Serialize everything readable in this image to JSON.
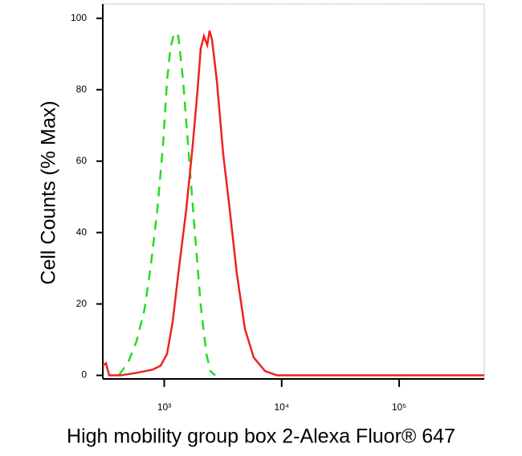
{
  "chart_data": {
    "type": "line",
    "x_label": "High mobility group box 2-Alexa Fluor® 647",
    "y_label": "Cell Counts (% Max)",
    "xscale": "log",
    "xlim": [
      300,
      530000
    ],
    "ylim": [
      -1,
      104
    ],
    "xticks": [
      {
        "value": 1000,
        "label": "10³"
      },
      {
        "value": 10000,
        "label": "10⁴"
      },
      {
        "value": 100000,
        "label": "10⁵"
      }
    ],
    "yticks": [
      0,
      20,
      40,
      60,
      80,
      100
    ],
    "series": [
      {
        "color": "#22dd22",
        "dashed": true,
        "x": [
          411,
          497,
          581,
          679,
          771,
          875,
          977,
          1057,
          1127,
          1217,
          1318,
          1449,
          1616,
          1804,
          2045,
          2285,
          2472,
          2716
        ],
        "values": [
          0,
          3.9,
          9.5,
          18.4,
          31,
          46.6,
          64.6,
          82.5,
          91.5,
          96,
          95,
          82.5,
          62,
          42,
          19.6,
          6,
          1.2,
          0
        ]
      },
      {
        "color": "#ee2222",
        "dashed": false,
        "x": [
          300,
          319,
          340,
          424,
          581,
          796,
          931,
          1057,
          1180,
          1318,
          1542,
          1750,
          1923,
          2045,
          2178,
          2323,
          2432,
          2552,
          2805,
          3177,
          3606,
          4150,
          4863,
          5781,
          7211,
          9126,
          530000
        ],
        "values": [
          2.7,
          3.4,
          0,
          0,
          0.7,
          1.6,
          2.7,
          6,
          15,
          28.5,
          46.6,
          64.6,
          80,
          91.5,
          95,
          92.5,
          96.5,
          94,
          82.5,
          62,
          46.6,
          28.5,
          13,
          5,
          1.2,
          0,
          0
        ]
      }
    ]
  }
}
